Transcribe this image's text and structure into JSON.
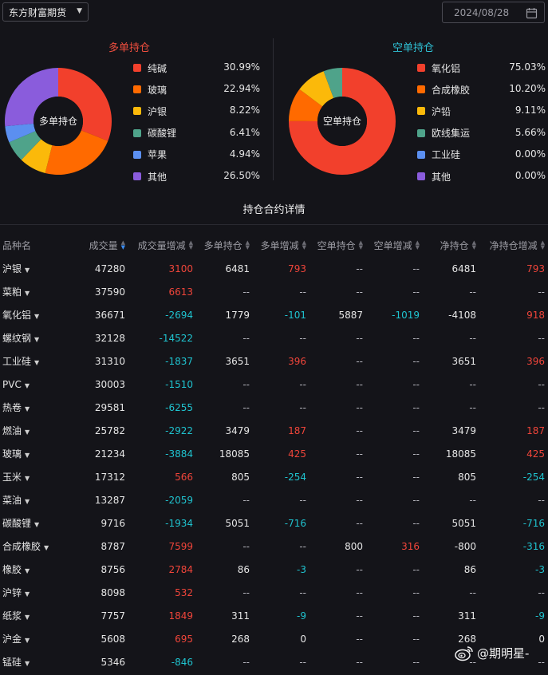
{
  "header": {
    "broker": "东方财富期货",
    "date": "2024/08/28"
  },
  "long": {
    "title": "多单持仓",
    "center_label": "多单持仓",
    "items": [
      {
        "name": "纯碱",
        "pct": "30.99%",
        "value": 30.99,
        "color": "#f2402c"
      },
      {
        "name": "玻璃",
        "pct": "22.94%",
        "value": 22.94,
        "color": "#ff6a00"
      },
      {
        "name": "沪银",
        "pct": "8.22%",
        "value": 8.22,
        "color": "#fbb90a"
      },
      {
        "name": "碳酸锂",
        "pct": "6.41%",
        "value": 6.41,
        "color": "#4fa38a"
      },
      {
        "name": "苹果",
        "pct": "4.94%",
        "value": 4.94,
        "color": "#5b8ff0"
      },
      {
        "name": "其他",
        "pct": "26.50%",
        "value": 26.5,
        "color": "#8a5cdc"
      }
    ]
  },
  "short": {
    "title": "空单持仓",
    "center_label": "空单持仓",
    "items": [
      {
        "name": "氧化铝",
        "pct": "75.03%",
        "value": 75.03,
        "color": "#f2402c"
      },
      {
        "name": "合成橡胶",
        "pct": "10.20%",
        "value": 10.2,
        "color": "#ff6a00"
      },
      {
        "name": "沪铅",
        "pct": "9.11%",
        "value": 9.11,
        "color": "#fbb90a"
      },
      {
        "name": "欧线集运",
        "pct": "5.66%",
        "value": 5.66,
        "color": "#4fa38a"
      },
      {
        "name": "工业硅",
        "pct": "0.00%",
        "value": 0,
        "color": "#5b8ff0"
      },
      {
        "name": "其他",
        "pct": "0.00%",
        "value": 0,
        "color": "#8a5cdc"
      }
    ]
  },
  "table": {
    "title": "持仓合约详情",
    "headers": [
      "品种名",
      "成交量",
      "成交量增减",
      "多单持仓",
      "多单增减",
      "空单持仓",
      "空单增减",
      "净持仓",
      "净持仓增减"
    ],
    "rows": [
      [
        "沪银",
        "47280",
        "3100",
        "6481",
        "793",
        "--",
        "--",
        "6481",
        "793"
      ],
      [
        "菜粕",
        "37590",
        "6613",
        "--",
        "--",
        "--",
        "--",
        "--",
        "--"
      ],
      [
        "氧化铝",
        "36671",
        "-2694",
        "1779",
        "-101",
        "5887",
        "-1019",
        "-4108",
        "918"
      ],
      [
        "螺纹钢",
        "32128",
        "-14522",
        "--",
        "--",
        "--",
        "--",
        "--",
        "--"
      ],
      [
        "工业硅",
        "31310",
        "-1837",
        "3651",
        "396",
        "--",
        "--",
        "3651",
        "396"
      ],
      [
        "PVC",
        "30003",
        "-1510",
        "--",
        "--",
        "--",
        "--",
        "--",
        "--"
      ],
      [
        "热卷",
        "29581",
        "-6255",
        "--",
        "--",
        "--",
        "--",
        "--",
        "--"
      ],
      [
        "燃油",
        "25782",
        "-2922",
        "3479",
        "187",
        "--",
        "--",
        "3479",
        "187"
      ],
      [
        "玻璃",
        "21234",
        "-3884",
        "18085",
        "425",
        "--",
        "--",
        "18085",
        "425"
      ],
      [
        "玉米",
        "17312",
        "566",
        "805",
        "-254",
        "--",
        "--",
        "805",
        "-254"
      ],
      [
        "菜油",
        "13287",
        "-2059",
        "--",
        "--",
        "--",
        "--",
        "--",
        "--"
      ],
      [
        "碳酸锂",
        "9716",
        "-1934",
        "5051",
        "-716",
        "--",
        "--",
        "5051",
        "-716"
      ],
      [
        "合成橡胶",
        "8787",
        "7599",
        "--",
        "--",
        "800",
        "316",
        "-800",
        "-316"
      ],
      [
        "橡胶",
        "8756",
        "2784",
        "86",
        "-3",
        "--",
        "--",
        "86",
        "-3"
      ],
      [
        "沪锌",
        "8098",
        "532",
        "--",
        "--",
        "--",
        "--",
        "--",
        "--"
      ],
      [
        "纸浆",
        "7757",
        "1849",
        "311",
        "-9",
        "--",
        "--",
        "311",
        "-9"
      ],
      [
        "沪金",
        "5608",
        "695",
        "268",
        "0",
        "--",
        "--",
        "268",
        "0"
      ],
      [
        "锰硅",
        "5346",
        "-846",
        "--",
        "--",
        "--",
        "--",
        "--",
        "--"
      ]
    ]
  },
  "colors": {
    "up": "#f0453a",
    "down": "#1fc3cf",
    "background": "#141419"
  },
  "watermark": "@期明星-"
}
